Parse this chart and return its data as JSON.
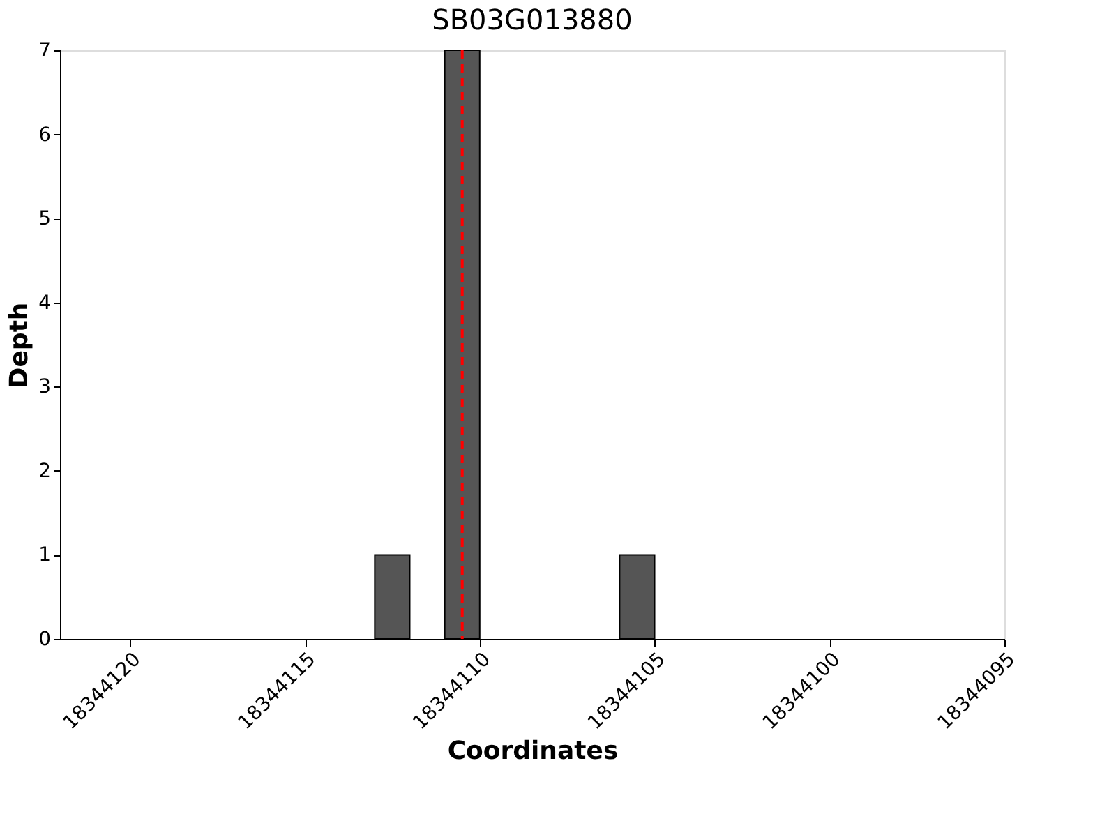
{
  "chart_data": {
    "type": "bar",
    "title": "SB03G013880",
    "xlabel": "Coordinates",
    "ylabel": "Depth",
    "x": [
      18344112.5,
      18344110.5,
      18344105.5
    ],
    "values": [
      1,
      7,
      1
    ],
    "color": "#555555",
    "xlim": [
      18344122,
      18344095
    ],
    "xticks": [
      18344120,
      18344115,
      18344110,
      18344105,
      18344100,
      18344095
    ],
    "ylim": [
      0,
      7
    ],
    "yticks": [
      0,
      1,
      2,
      3,
      4,
      5,
      6,
      7
    ],
    "ref_lines": [
      {
        "axis": "x",
        "value": 18344110.5,
        "color": "#ff0000",
        "line_style": "dashed"
      }
    ],
    "grid": false
  }
}
